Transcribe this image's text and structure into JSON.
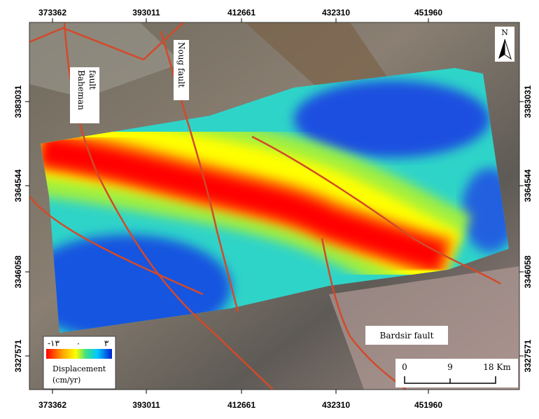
{
  "map": {
    "top_ticks": [
      "373362",
      "393011",
      "412661",
      "432310",
      "451960"
    ],
    "bottom_ticks": [
      "373362",
      "393011",
      "412661",
      "432310",
      "451960"
    ],
    "left_ticks": [
      "3383031",
      "3364544",
      "3346058",
      "3327571"
    ],
    "right_ticks": [
      "3383031",
      "3364544",
      "3346058",
      "3327571"
    ],
    "faults": {
      "baheman": [
        "Baheman",
        "fault"
      ],
      "noug": "Noug fault",
      "bardsir": "Bardsir fault"
    },
    "legend": {
      "min": "-۱۳",
      "mid": "۰",
      "max": "۳",
      "title": [
        "Displacement",
        "(cm/yr)"
      ]
    },
    "scale_bar": {
      "labels": [
        "0",
        "9",
        "18 Km"
      ]
    },
    "north": "N"
  }
}
